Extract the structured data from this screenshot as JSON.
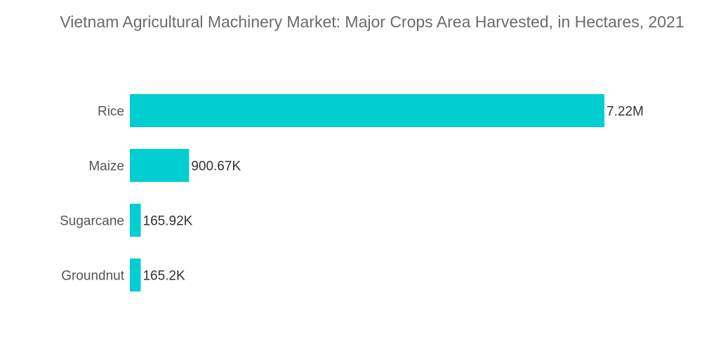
{
  "chart_data": {
    "type": "bar",
    "orientation": "horizontal",
    "title": "Vietnam Agricultural Machinery Market: Major Crops Area Harvested, in Hectares, 2021",
    "categories": [
      "Rice",
      "Maize",
      "Sugarcane",
      "Groundnut"
    ],
    "values": [
      7220000,
      900670,
      165920,
      165200
    ],
    "data_labels": [
      "7.22M",
      "900.67K",
      "165.92K",
      "165.2K"
    ],
    "xlabel": "",
    "ylabel": "",
    "xlim": [
      0,
      7220000
    ],
    "grid": false,
    "legend": "none",
    "bar_color": "#00CED1"
  }
}
